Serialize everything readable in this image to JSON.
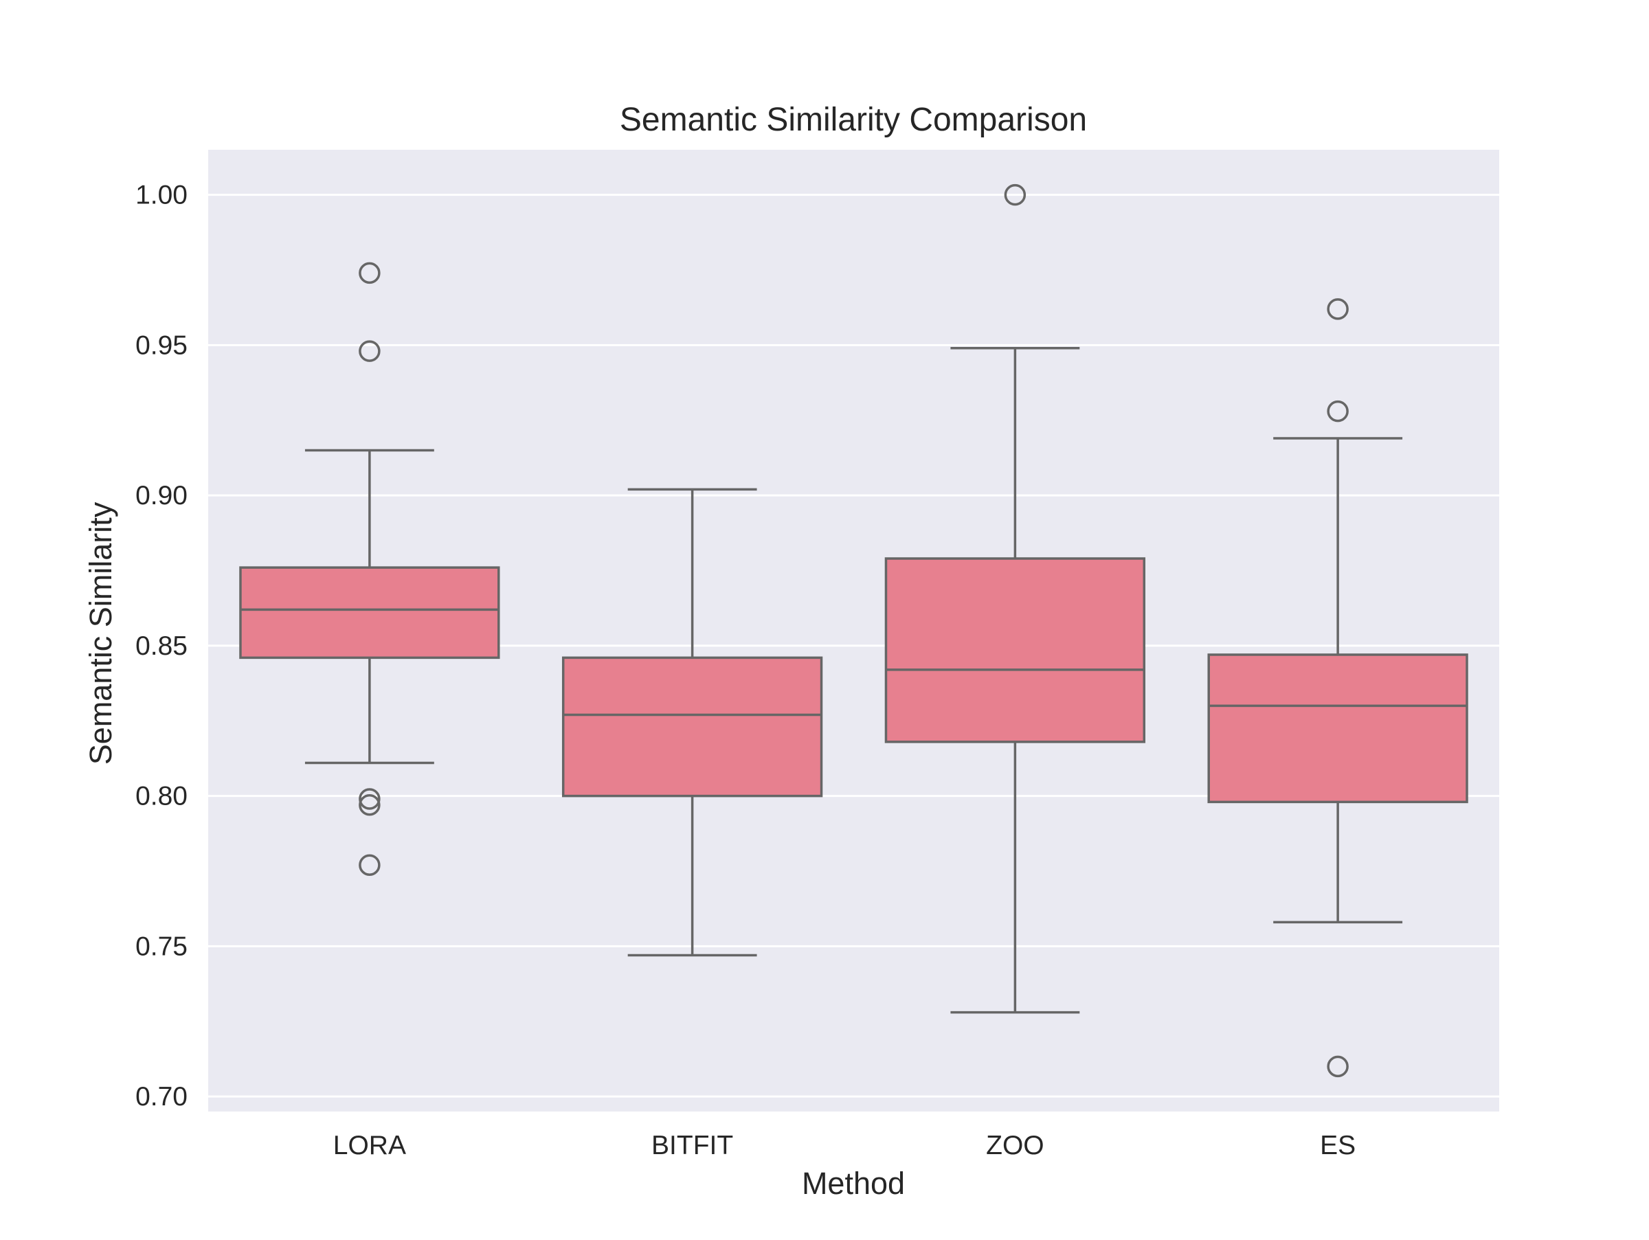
{
  "colors": {
    "plot_background": "#eaeaf2",
    "grid": "#ffffff",
    "box_fill": "#e7808f",
    "box_line": "#666666",
    "text": "#262626"
  },
  "chart_data": {
    "type": "box",
    "title": "Semantic Similarity Comparison",
    "xlabel": "Method",
    "ylabel": "Semantic Similarity",
    "ylim": [
      0.695,
      1.015
    ],
    "yticks": [
      "0.70",
      "0.75",
      "0.80",
      "0.85",
      "0.90",
      "0.95",
      "1.00"
    ],
    "grid": true,
    "categories": [
      "LORA",
      "BITFIT",
      "ZOO",
      "ES"
    ],
    "boxes": [
      {
        "category": "LORA",
        "whisker_low": 0.811,
        "q1": 0.846,
        "median": 0.862,
        "q3": 0.876,
        "whisker_high": 0.915,
        "outliers": [
          0.974,
          0.948,
          0.799,
          0.797,
          0.777
        ]
      },
      {
        "category": "BITFIT",
        "whisker_low": 0.747,
        "q1": 0.8,
        "median": 0.827,
        "q3": 0.846,
        "whisker_high": 0.902,
        "outliers": []
      },
      {
        "category": "ZOO",
        "whisker_low": 0.728,
        "q1": 0.818,
        "median": 0.842,
        "q3": 0.879,
        "whisker_high": 0.949,
        "outliers": [
          1.0
        ]
      },
      {
        "category": "ES",
        "whisker_low": 0.758,
        "q1": 0.798,
        "median": 0.83,
        "q3": 0.847,
        "whisker_high": 0.919,
        "outliers": [
          0.962,
          0.928,
          0.71
        ]
      }
    ]
  }
}
